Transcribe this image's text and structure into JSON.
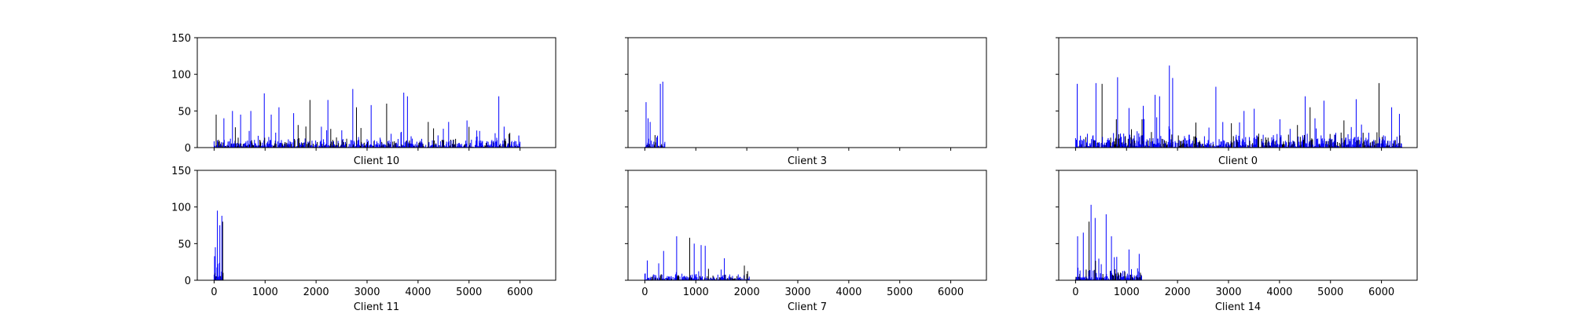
{
  "figure": {
    "background": "#ffffff"
  },
  "colors": {
    "bar_a": "#0000ff",
    "bar_b": "#000000",
    "axes": "#000000"
  },
  "chart_data": [
    {
      "type": "bar",
      "title": "Client 10",
      "xlim": [
        -330,
        6700
      ],
      "ylim": [
        0,
        150
      ],
      "yticks": [
        0,
        50,
        100,
        150
      ],
      "xticks": [
        0,
        1000,
        2000,
        3000,
        4000,
        5000,
        6000
      ],
      "show_xtick_labels": false,
      "show_ytick_labels": true,
      "x_extent": [
        0,
        6000
      ],
      "peaks": [
        [
          40,
          45
        ],
        [
          190,
          40
        ],
        [
          360,
          50
        ],
        [
          520,
          45
        ],
        [
          720,
          50
        ],
        [
          985,
          74
        ],
        [
          1120,
          45
        ],
        [
          1270,
          55
        ],
        [
          1560,
          47
        ],
        [
          1880,
          65
        ],
        [
          2230,
          65
        ],
        [
          2720,
          80
        ],
        [
          2790,
          55
        ],
        [
          3080,
          58
        ],
        [
          3380,
          60
        ],
        [
          3720,
          75
        ],
        [
          3790,
          70
        ],
        [
          4200,
          35
        ],
        [
          4600,
          35
        ],
        [
          4960,
          37
        ],
        [
          5580,
          70
        ],
        [
          5800,
          20
        ],
        [
          6000,
          8
        ]
      ],
      "base_level": 15,
      "seed": 11
    },
    {
      "type": "bar",
      "title": "Client 3",
      "xlim": [
        -330,
        6700
      ],
      "ylim": [
        0,
        150
      ],
      "yticks": [
        0,
        50,
        100,
        150
      ],
      "xticks": [
        0,
        1000,
        2000,
        3000,
        4000,
        5000,
        6000
      ],
      "show_xtick_labels": false,
      "show_ytick_labels": false,
      "x_extent": [
        0,
        400
      ],
      "peaks": [
        [
          20,
          62
        ],
        [
          60,
          40
        ],
        [
          100,
          35
        ],
        [
          300,
          87
        ],
        [
          350,
          90
        ]
      ],
      "base_level": 18,
      "seed": 3
    },
    {
      "type": "bar",
      "title": "Client 0",
      "xlim": [
        -330,
        6700
      ],
      "ylim": [
        0,
        150
      ],
      "yticks": [
        0,
        50,
        100,
        150
      ],
      "xticks": [
        0,
        1000,
        2000,
        3000,
        4000,
        5000,
        6000
      ],
      "show_xtick_labels": false,
      "show_ytick_labels": false,
      "x_extent": [
        0,
        6400
      ],
      "peaks": [
        [
          30,
          87
        ],
        [
          400,
          88
        ],
        [
          520,
          87
        ],
        [
          820,
          96
        ],
        [
          1050,
          54
        ],
        [
          1330,
          57
        ],
        [
          1560,
          72
        ],
        [
          1650,
          70
        ],
        [
          1840,
          112
        ],
        [
          1900,
          95
        ],
        [
          2750,
          83
        ],
        [
          3300,
          50
        ],
        [
          3500,
          53
        ],
        [
          4500,
          70
        ],
        [
          4600,
          55
        ],
        [
          4870,
          64
        ],
        [
          5500,
          66
        ],
        [
          5950,
          88
        ],
        [
          6200,
          55
        ],
        [
          6350,
          46
        ]
      ],
      "base_level": 22,
      "seed": 7
    },
    {
      "type": "bar",
      "title": "Client 11",
      "xlim": [
        -330,
        6700
      ],
      "ylim": [
        0,
        150
      ],
      "yticks": [
        0,
        50,
        100,
        150
      ],
      "xticks": [
        0,
        1000,
        2000,
        3000,
        4000,
        5000,
        6000
      ],
      "show_xtick_labels": true,
      "show_ytick_labels": true,
      "x_extent": [
        0,
        180
      ],
      "peaks": [
        [
          20,
          45
        ],
        [
          60,
          95
        ],
        [
          110,
          75
        ],
        [
          150,
          88
        ],
        [
          170,
          80
        ]
      ],
      "base_level": 25,
      "seed": 5
    },
    {
      "type": "bar",
      "title": "Client 7",
      "xlim": [
        -330,
        6700
      ],
      "ylim": [
        0,
        150
      ],
      "yticks": [
        0,
        50,
        100,
        150
      ],
      "xticks": [
        0,
        1000,
        2000,
        3000,
        4000,
        5000,
        6000
      ],
      "show_xtick_labels": true,
      "show_ytick_labels": false,
      "x_extent": [
        0,
        2050
      ],
      "peaks": [
        [
          50,
          27
        ],
        [
          370,
          40
        ],
        [
          620,
          60
        ],
        [
          880,
          58
        ],
        [
          970,
          50
        ],
        [
          1100,
          48
        ],
        [
          1180,
          47
        ],
        [
          1560,
          30
        ],
        [
          1950,
          20
        ]
      ],
      "base_level": 10,
      "seed": 13
    },
    {
      "type": "bar",
      "title": "Client 14",
      "xlim": [
        -330,
        6700
      ],
      "ylim": [
        0,
        150
      ],
      "yticks": [
        0,
        50,
        100,
        150
      ],
      "xticks": [
        0,
        1000,
        2000,
        3000,
        4000,
        5000,
        6000
      ],
      "show_xtick_labels": true,
      "show_ytick_labels": false,
      "x_extent": [
        0,
        1300
      ],
      "peaks": [
        [
          40,
          60
        ],
        [
          150,
          65
        ],
        [
          260,
          80
        ],
        [
          300,
          103
        ],
        [
          380,
          85
        ],
        [
          600,
          90
        ],
        [
          700,
          60
        ],
        [
          1050,
          42
        ],
        [
          1250,
          36
        ]
      ],
      "base_level": 18,
      "seed": 17
    }
  ]
}
